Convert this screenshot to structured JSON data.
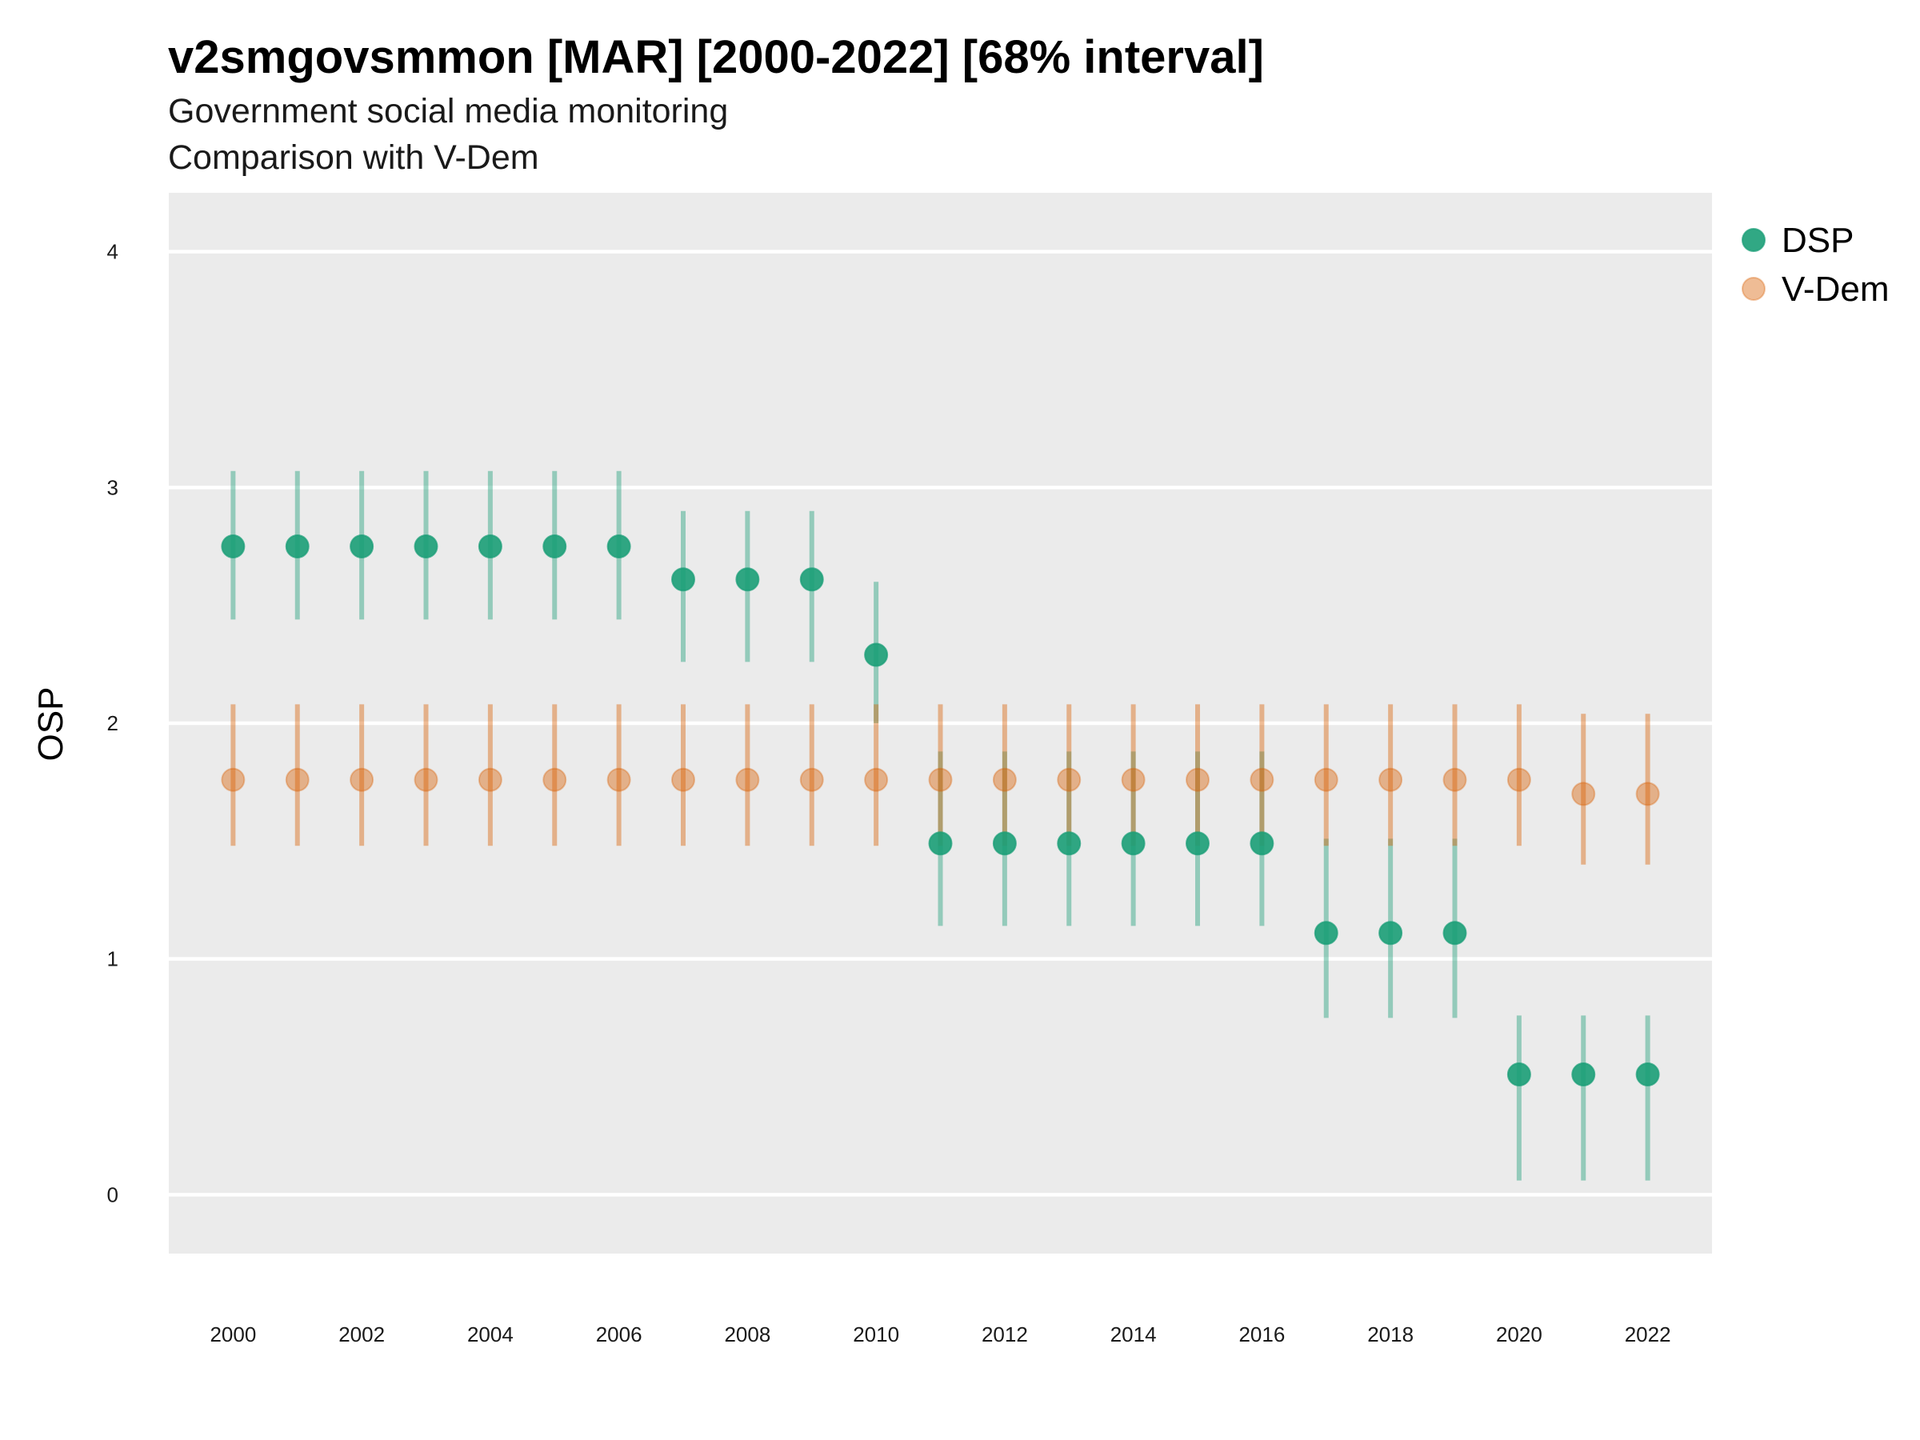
{
  "chart_data": {
    "type": "scatter",
    "title": "v2smgovsmmon [MAR] [2000-2022] [68% interval]",
    "subtitle": [
      "Government social media monitoring",
      "Comparison with V-Dem"
    ],
    "xlabel": "",
    "ylabel": "OSP",
    "x": [
      2000,
      2001,
      2002,
      2003,
      2004,
      2005,
      2006,
      2007,
      2008,
      2009,
      2010,
      2011,
      2012,
      2013,
      2014,
      2015,
      2016,
      2017,
      2018,
      2019,
      2020,
      2021,
      2022
    ],
    "xticks": [
      2000,
      2002,
      2004,
      2006,
      2008,
      2010,
      2012,
      2014,
      2016,
      2018,
      2020,
      2022
    ],
    "yticks": [
      0,
      1,
      2,
      3,
      4
    ],
    "xlim": [
      1999.0,
      2023.0
    ],
    "ylim": [
      -0.25,
      4.25
    ],
    "grid": true,
    "legend_position": "right",
    "series": [
      {
        "name": "DSP",
        "color": "#1b9e77",
        "values": [
          2.75,
          2.75,
          2.75,
          2.75,
          2.75,
          2.75,
          2.75,
          2.61,
          2.61,
          2.61,
          2.29,
          1.49,
          1.49,
          1.49,
          1.49,
          1.49,
          1.49,
          1.11,
          1.11,
          1.11,
          0.51,
          0.51,
          0.51
        ],
        "lower": [
          2.44,
          2.44,
          2.44,
          2.44,
          2.44,
          2.44,
          2.44,
          2.26,
          2.26,
          2.26,
          2.0,
          1.14,
          1.14,
          1.14,
          1.14,
          1.14,
          1.14,
          0.75,
          0.75,
          0.75,
          0.06,
          0.06,
          0.06
        ],
        "upper": [
          3.07,
          3.07,
          3.07,
          3.07,
          3.07,
          3.07,
          3.07,
          2.9,
          2.9,
          2.9,
          2.6,
          1.88,
          1.88,
          1.88,
          1.88,
          1.88,
          1.88,
          1.51,
          1.51,
          1.51,
          0.76,
          0.76,
          0.76
        ]
      },
      {
        "name": "V-Dem",
        "color": "#d95f02",
        "values": [
          1.76,
          1.76,
          1.76,
          1.76,
          1.76,
          1.76,
          1.76,
          1.76,
          1.76,
          1.76,
          1.76,
          1.76,
          1.76,
          1.76,
          1.76,
          1.76,
          1.76,
          1.76,
          1.76,
          1.76,
          1.76,
          1.7,
          1.7
        ],
        "lower": [
          1.48,
          1.48,
          1.48,
          1.48,
          1.48,
          1.48,
          1.48,
          1.48,
          1.48,
          1.48,
          1.48,
          1.48,
          1.48,
          1.48,
          1.48,
          1.48,
          1.48,
          1.48,
          1.48,
          1.48,
          1.48,
          1.4,
          1.4
        ],
        "upper": [
          2.08,
          2.08,
          2.08,
          2.08,
          2.08,
          2.08,
          2.08,
          2.08,
          2.08,
          2.08,
          2.08,
          2.08,
          2.08,
          2.08,
          2.08,
          2.08,
          2.08,
          2.08,
          2.08,
          2.08,
          2.08,
          2.04,
          2.04
        ]
      }
    ]
  }
}
